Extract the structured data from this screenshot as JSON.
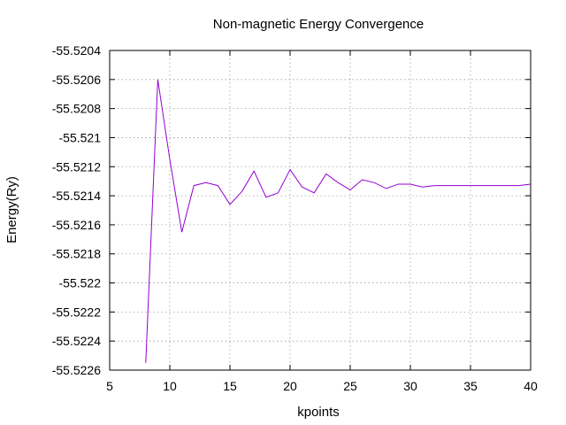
{
  "chart_data": {
    "type": "line",
    "title": "Non-magnetic Energy Convergence",
    "xlabel": "kpoints",
    "ylabel": "Energy(Ry)",
    "xlim": [
      5,
      40
    ],
    "ylim": [
      -55.5226,
      -55.5204
    ],
    "x_ticks": [
      5,
      10,
      15,
      20,
      25,
      30,
      35,
      40
    ],
    "x_tick_labels": [
      "5",
      "10",
      "15",
      "20",
      "25",
      "30",
      "35",
      "40"
    ],
    "y_ticks": [
      -55.5204,
      -55.5206,
      -55.5208,
      -55.521,
      -55.5212,
      -55.5214,
      -55.5216,
      -55.5218,
      -55.522,
      -55.5222,
      -55.5224,
      -55.5226
    ],
    "y_tick_labels": [
      "-55.5204",
      "-55.5206",
      "-55.5208",
      "-55.521",
      "-55.5212",
      "-55.5214",
      "-55.5216",
      "-55.5218",
      "-55.522",
      "-55.5222",
      "-55.5224",
      "-55.5226"
    ],
    "grid": true,
    "legend": "none",
    "series": [
      {
        "color": "#9400d3",
        "x": [
          8,
          9,
          10,
          11,
          12,
          13,
          14,
          15,
          16,
          17,
          18,
          19,
          20,
          21,
          22,
          23,
          24,
          25,
          26,
          27,
          28,
          29,
          30,
          31,
          32,
          33,
          34,
          35,
          36,
          37,
          38,
          39,
          40
        ],
        "y": [
          -55.52255,
          -55.5206,
          -55.52115,
          -55.52165,
          -55.52133,
          -55.52131,
          -55.52133,
          -55.52146,
          -55.52137,
          -55.52123,
          -55.52141,
          -55.52138,
          -55.52122,
          -55.52134,
          -55.52138,
          -55.52125,
          -55.52131,
          -55.52136,
          -55.52129,
          -55.52131,
          -55.52135,
          -55.52132,
          -55.52132,
          -55.52134,
          -55.52133,
          -55.52133,
          -55.52133,
          -55.52133,
          -55.52133,
          -55.52133,
          -55.52133,
          -55.52133,
          -55.52132
        ]
      }
    ]
  }
}
